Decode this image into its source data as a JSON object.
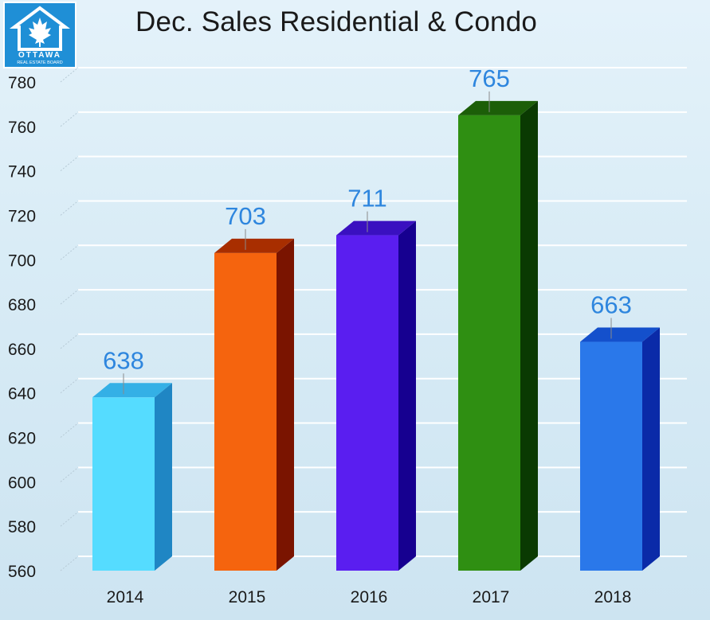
{
  "logo": {
    "text_line1": "OTTAWA",
    "text_line2": "REAL ESTATE BOARD",
    "icon": "maple-leaf-house-icon"
  },
  "chart_data": {
    "type": "bar",
    "title": "Dec. Sales Residential & Condo",
    "xlabel": "",
    "ylabel": "",
    "categories": [
      "2014",
      "2015",
      "2016",
      "2017",
      "2018"
    ],
    "values": [
      638,
      703,
      711,
      765,
      663
    ],
    "ylim": [
      560,
      780
    ],
    "yticks": [
      560,
      580,
      600,
      620,
      640,
      660,
      680,
      700,
      720,
      740,
      760,
      780
    ],
    "grid": true,
    "legend": "none",
    "colors": {
      "front": [
        "#55dcff",
        "#f5640e",
        "#5a1ef0",
        "#2f8f12",
        "#2a78ea"
      ],
      "side": [
        "#1f86c4",
        "#7a1400",
        "#160090",
        "#0a3a02",
        "#0a2aa8"
      ],
      "top": [
        "#34b0e6",
        "#a82e00",
        "#3a10c0",
        "#1c5e08",
        "#1450cc"
      ],
      "data_label": "#2e86de",
      "grid": "#ffffff"
    }
  }
}
